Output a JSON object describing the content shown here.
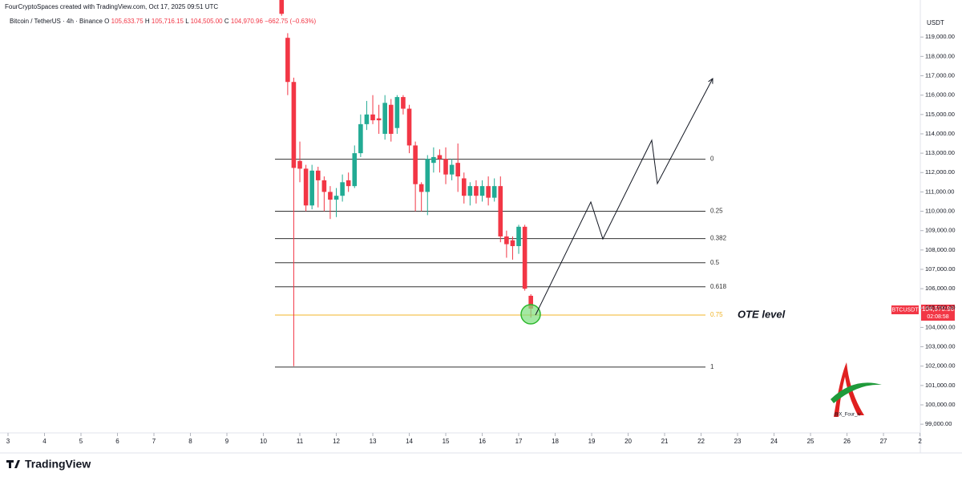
{
  "header": {
    "credit": "FourCryptoSpaces created with TradingView.com, Oct 17, 2025 09:51 UTC",
    "symbol": "Bitcoin / TetherUS · 4h · Binance",
    "legend": [
      {
        "key": "O",
        "value": "105,633.75"
      },
      {
        "key": "H",
        "value": "105,716.15"
      },
      {
        "key": "L",
        "value": "104,505.00"
      },
      {
        "key": "C",
        "value": "104,970.96"
      }
    ],
    "change": "−662.75 (−0.63%)"
  },
  "chart_data": {
    "type": "candlestick",
    "currency": "USDT",
    "up_color": "#22ab94",
    "down_color": "#f23645",
    "x": [
      10.5,
      10.667,
      10.833,
      11,
      11.167,
      11.333,
      11.5,
      11.667,
      11.833,
      12,
      12.167,
      12.333,
      12.5,
      12.667,
      12.833,
      13,
      13.167,
      13.333,
      13.5,
      13.667,
      13.833,
      14,
      14.167,
      14.333,
      14.5,
      14.667,
      14.833,
      15,
      15.167,
      15.333,
      15.5,
      15.667,
      15.833,
      16,
      16.167,
      16.333,
      16.5,
      16.667,
      16.833,
      17,
      17.167,
      17.333
    ],
    "open": [
      120950,
      118960,
      116680,
      112600,
      112200,
      110300,
      112100,
      111600,
      111000,
      110600,
      110800,
      111600,
      111300,
      113000,
      114500,
      115000,
      114800,
      114000,
      115500,
      114300,
      115900,
      115300,
      113400,
      111400,
      111000,
      112500,
      112900,
      112700,
      111900,
      112500,
      111700,
      110800,
      111300,
      110800,
      111300,
      110700,
      111300,
      108700,
      108500,
      108200,
      109200,
      105633.75
    ],
    "high": [
      120950,
      119200,
      116900,
      113600,
      112400,
      112400,
      112300,
      111800,
      111300,
      111200,
      111900,
      112000,
      113400,
      115000,
      115700,
      116000,
      115500,
      116000,
      115800,
      116000,
      116000,
      115500,
      113600,
      111500,
      112900,
      113300,
      113200,
      113300,
      112700,
      113500,
      112000,
      111500,
      111600,
      111600,
      111800,
      111700,
      111800,
      109000,
      108700,
      109300,
      109300,
      105716.15
    ],
    "low": [
      120100,
      116000,
      102000,
      111500,
      110000,
      110100,
      110200,
      110000,
      109600,
      109700,
      110500,
      111000,
      111200,
      112800,
      114200,
      114500,
      114000,
      113700,
      113600,
      114000,
      115000,
      113000,
      110000,
      110000,
      109800,
      112000,
      112000,
      111400,
      111600,
      111000,
      110400,
      110300,
      110400,
      110500,
      110300,
      110500,
      108400,
      107600,
      107500,
      107800,
      105900,
      104505
    ],
    "close": [
      120200,
      116680,
      112240,
      112200,
      110300,
      112100,
      111600,
      111000,
      110600,
      110800,
      111500,
      111300,
      113000,
      114500,
      115000,
      114700,
      114700,
      115600,
      114000,
      115900,
      115300,
      113400,
      111400,
      111000,
      112700,
      112800,
      112700,
      111900,
      112400,
      111800,
      110800,
      111300,
      110800,
      111300,
      110700,
      111300,
      108700,
      108300,
      108200,
      109200,
      106000,
      104970.96
    ],
    "xlim": [
      2.78,
      28.01
    ],
    "ylim": [
      98550,
      120500
    ],
    "xticks": [
      3,
      4,
      5,
      6,
      7,
      8,
      9,
      10,
      11,
      12,
      13,
      14,
      15,
      16,
      17,
      18,
      19,
      20,
      21,
      22,
      23,
      24,
      25,
      26,
      27,
      {
        "value": 28,
        "label": "2"
      }
    ],
    "yticks": [
      {
        "value": 99000,
        "label": "99,000.00"
      },
      {
        "value": 100000,
        "label": "100,000.00"
      },
      {
        "value": 101000,
        "label": "101,000.00"
      },
      {
        "value": 102000,
        "label": "102,000.00"
      },
      {
        "value": 103000,
        "label": "103,000.00"
      },
      {
        "value": 104000,
        "label": "104,000.00"
      },
      {
        "value": 105000,
        "label": "105,000.00"
      },
      {
        "value": 106000,
        "label": "106,000.00"
      },
      {
        "value": 107000,
        "label": "107,000.00"
      },
      {
        "value": 108000,
        "label": "108,000.00"
      },
      {
        "value": 109000,
        "label": "109,000.00"
      },
      {
        "value": 110000,
        "label": "110,000.00"
      },
      {
        "value": 111000,
        "label": "111,000.00"
      },
      {
        "value": 112000,
        "label": "112,000.00"
      },
      {
        "value": 113000,
        "label": "113,000.00"
      },
      {
        "value": 114000,
        "label": "114,000.00"
      },
      {
        "value": 115000,
        "label": "115,000.00"
      },
      {
        "value": 116000,
        "label": "116,000.00"
      },
      {
        "value": 117000,
        "label": "117,000.00"
      },
      {
        "value": 118000,
        "label": "118,000.00"
      },
      {
        "value": 119000,
        "label": "119,000.00"
      }
    ],
    "fib_levels": [
      {
        "label": "0",
        "price": 112690,
        "color": "#333333"
      },
      {
        "label": "0.25",
        "price": 110000,
        "color": "#333333"
      },
      {
        "label": "0.382",
        "price": 108590,
        "color": "#333333"
      },
      {
        "label": "0.5",
        "price": 107340,
        "color": "#333333"
      },
      {
        "label": "0.618",
        "price": 106100,
        "color": "#333333"
      },
      {
        "label": "0.75",
        "price": 104640,
        "color": "#f0b429"
      },
      {
        "label": "1",
        "price": 101950,
        "color": "#333333"
      }
    ],
    "annotation": "OTE level",
    "price_tag": {
      "symbol": "BTCUSDT",
      "price": "104,970.96",
      "countdown": "02:08:58"
    },
    "watermark": "@X_Four_iv"
  },
  "footer": {
    "brand": "TradingView"
  }
}
